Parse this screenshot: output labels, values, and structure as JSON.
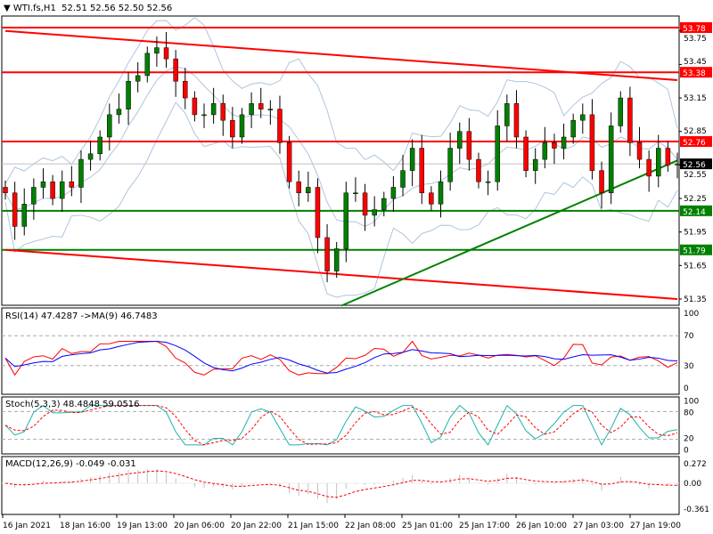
{
  "header": {
    "symbol": "WTI.fs,H1",
    "ohlc": "52.51 52.56 52.50 52.56"
  },
  "colors": {
    "bull": "#008000",
    "bear": "#ff0000",
    "resistance": "#ff0000",
    "support": "#008000",
    "bands": "#b0c4de",
    "rsi": "#ff0000",
    "rsi_ma": "#0000ff",
    "stoch_main": "#20b2aa",
    "stoch_signal": "#ff0000",
    "macd_hist": "#c0c0c0",
    "macd_signal": "#ff0000"
  },
  "chart_data": [
    {
      "type": "candlestick",
      "title": "WTI.fs,H1",
      "closes": [
        52.3,
        52.0,
        52.2,
        52.35,
        52.4,
        52.25,
        52.4,
        52.35,
        52.6,
        52.65,
        52.8,
        53.0,
        53.05,
        53.3,
        53.35,
        53.55,
        53.6,
        53.5,
        53.3,
        53.15,
        53.0,
        53.0,
        53.1,
        52.95,
        52.8,
        53.0,
        53.1,
        53.05,
        53.05,
        52.75,
        52.4,
        52.3,
        52.35,
        51.9,
        51.6,
        51.8,
        52.3,
        52.3,
        52.1,
        52.15,
        52.25,
        52.35,
        52.5,
        52.7,
        52.3,
        52.2,
        52.4,
        52.7,
        52.85,
        52.6,
        52.4,
        52.4,
        52.9,
        53.1,
        52.8,
        52.5,
        52.6,
        52.75,
        52.7,
        52.8,
        52.95,
        53.0,
        52.5,
        52.3,
        52.9,
        53.15,
        52.75,
        52.6,
        52.45,
        52.7,
        52.55,
        52.56
      ],
      "ylim": [
        51.29,
        53.88
      ],
      "price_ticks": [
        "53.75",
        "53.45",
        "53.15",
        "52.85",
        "52.55",
        "52.25",
        "51.95",
        "51.65",
        "51.35"
      ],
      "levels": [
        {
          "price": 53.78,
          "label": "53.78",
          "kind": "resistance"
        },
        {
          "price": 53.38,
          "label": "53.38",
          "kind": "resistance"
        },
        {
          "price": 52.76,
          "label": "52.76",
          "kind": "resistance"
        },
        {
          "price": 52.14,
          "label": "52.14",
          "kind": "support"
        },
        {
          "price": 51.79,
          "label": "51.79",
          "kind": "support"
        }
      ],
      "current_price": {
        "price": 52.56,
        "label": "52.56"
      },
      "trendlines": [
        {
          "kind": "resistance",
          "from": {
            "bar": 0,
            "price": 53.75
          },
          "to": {
            "bar": 71,
            "price": 53.31
          }
        },
        {
          "kind": "resistance",
          "from": {
            "bar": 0,
            "price": 51.79
          },
          "to": {
            "bar": 71,
            "price": 51.35
          }
        },
        {
          "kind": "support",
          "from": {
            "bar": 35.5,
            "price": 51.29
          },
          "to": {
            "bar": 71,
            "price": 52.59
          }
        }
      ],
      "time_labels": [
        "16 Jan 2021",
        "18 Jan 16:00",
        "19 Jan 13:00",
        "20 Jan 06:00",
        "20 Jan 22:00",
        "21 Jan 15:00",
        "22 Jan 08:00",
        "25 Jan 01:00",
        "25 Jan 17:00",
        "26 Jan 10:00",
        "27 Jan 03:00",
        "27 Jan 19:00"
      ]
    },
    {
      "type": "line",
      "title": "RSI(14) 47.4287  ->MA(9) 46.7483",
      "ylim": [
        0,
        100
      ],
      "ticks": [
        "100",
        "70",
        "30",
        "0"
      ],
      "levels": [
        70,
        30
      ]
    },
    {
      "type": "line",
      "title": "Stoch(5,3,3) 48.4848 59.0516",
      "ylim": [
        0,
        100
      ],
      "ticks": [
        "100",
        "80",
        "20",
        "0"
      ],
      "levels": [
        80,
        20
      ]
    },
    {
      "type": "bar",
      "title": "MACD(12,26,9) -0.049 -0.031",
      "ylim": [
        -0.361,
        0.272
      ],
      "ticks": [
        "0.272",
        "0.00",
        "-0.361"
      ]
    }
  ]
}
